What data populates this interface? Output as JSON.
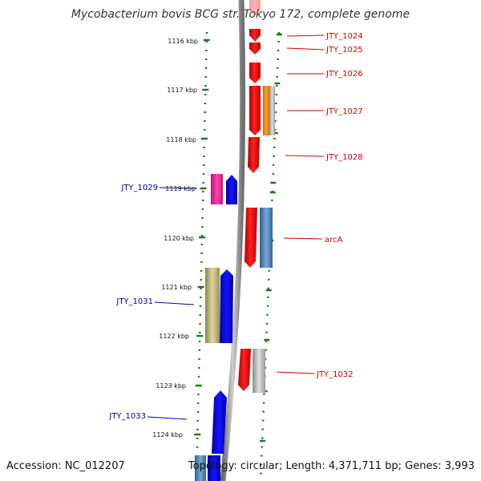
{
  "title": "Mycobacterium bovis BCG str. Tokyo 172, complete genome",
  "footer": {
    "accession": "Accession: NC_012207",
    "summary": "Topology: circular; Length: 4,371,711 bp; Genes: 3,993"
  },
  "colors": {
    "backbone": "#8c8c8c",
    "tick": "#1a7a1a",
    "forward_label": "#d40000",
    "reverse_label": "#0000b4",
    "red": "#ee0000",
    "blue": "#0000ee",
    "pink": "#ee1493",
    "orange": "#ff8c00",
    "gray": "#b4b4b4",
    "steel": "#4682b4",
    "khaki": "#b4aa6e"
  },
  "scale_labels": [
    {
      "kbp": 1116,
      "label": "1116 kbp"
    },
    {
      "kbp": 1117,
      "label": "1117 kbp"
    },
    {
      "kbp": 1118,
      "label": "1118 kbp"
    },
    {
      "kbp": 1119,
      "label": "1119 kbp"
    },
    {
      "kbp": 1120,
      "label": "1120 kbp"
    },
    {
      "kbp": 1121,
      "label": "1121 kbp"
    },
    {
      "kbp": 1122,
      "label": "1122 kbp"
    },
    {
      "kbp": 1123,
      "label": "1123 kbp"
    },
    {
      "kbp": 1124,
      "label": "1124 kbp"
    }
  ],
  "gene_labels": [
    {
      "name": "JTY_1024",
      "strand": "forward"
    },
    {
      "name": "JTY_1025",
      "strand": "forward"
    },
    {
      "name": "JTY_1026",
      "strand": "forward"
    },
    {
      "name": "JTY_1027",
      "strand": "forward"
    },
    {
      "name": "JTY_1028",
      "strand": "forward"
    },
    {
      "name": "arcA",
      "strand": "forward"
    },
    {
      "name": "JTY_1032",
      "strand": "forward"
    },
    {
      "name": "JTY_1029",
      "strand": "reverse"
    },
    {
      "name": "JTY_1031",
      "strand": "reverse"
    },
    {
      "name": "JTY_1033",
      "strand": "reverse"
    }
  ]
}
